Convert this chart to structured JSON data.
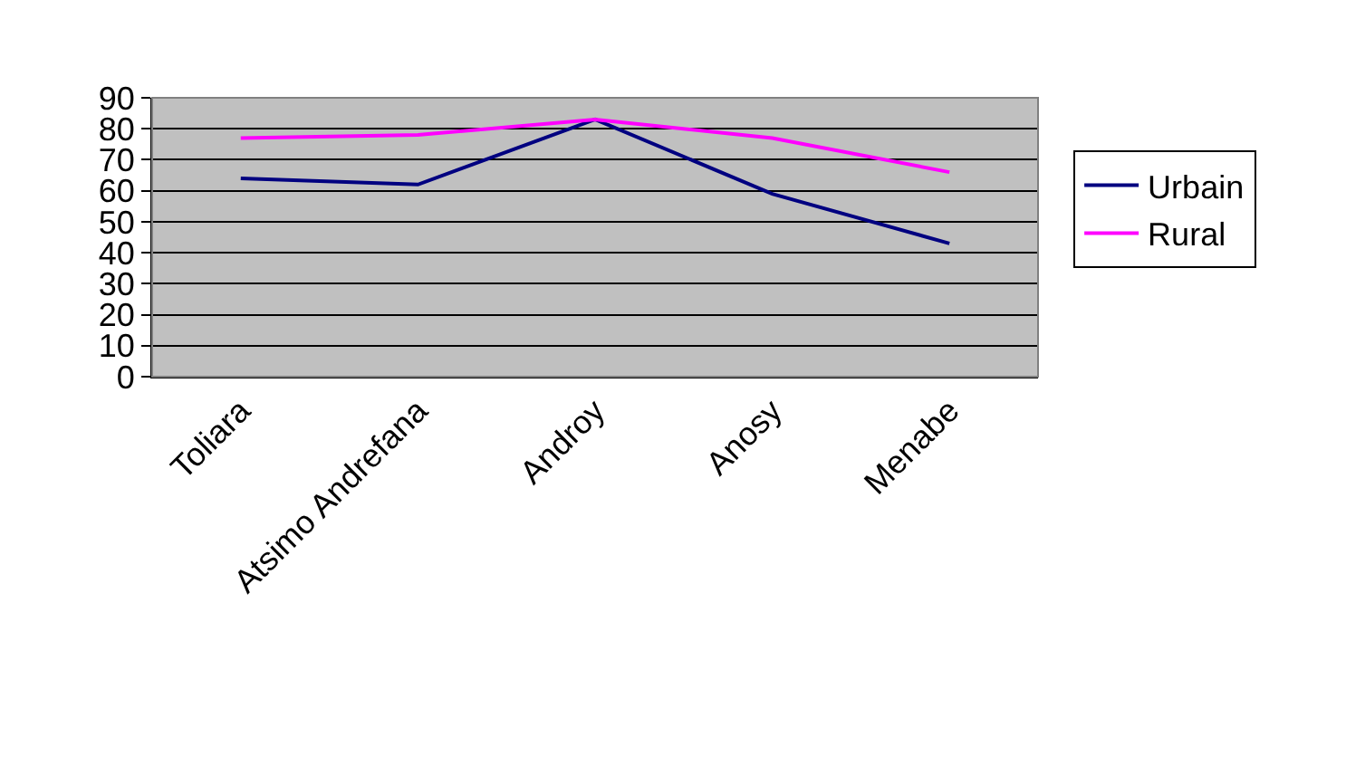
{
  "chart_data": {
    "type": "line",
    "categories": [
      "Toliara",
      "Atsimo Andrefana",
      "Androy",
      "Anosy",
      "Menabe"
    ],
    "series": [
      {
        "name": "Urbain",
        "color": "#000080",
        "values": [
          64,
          62,
          83,
          59,
          43
        ]
      },
      {
        "name": "Rural",
        "color": "#ff00ff",
        "values": [
          77,
          78,
          83,
          77,
          66
        ]
      }
    ],
    "ylim": [
      0,
      90
    ],
    "yticks": [
      0,
      10,
      20,
      30,
      40,
      50,
      60,
      70,
      80,
      90
    ],
    "grid": "y",
    "legend": "right",
    "marker": "none",
    "line_style": "solid"
  }
}
